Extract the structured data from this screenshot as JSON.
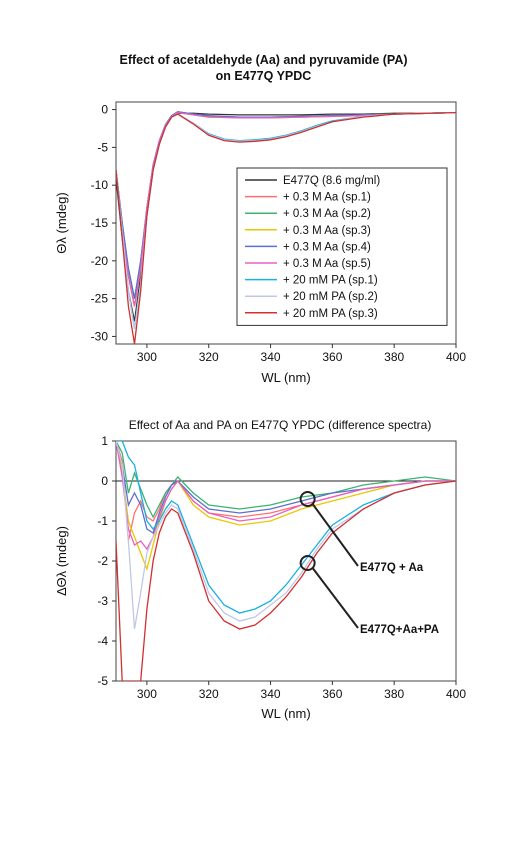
{
  "chart_data": [
    {
      "type": "line",
      "title": "Effect of acetaldehyde (Aa) and pyruvamide (PA)",
      "subtitle": "on E477Q YPDC",
      "xlabel": "WL (nm)",
      "ylabel": "Θλ (mdeg)",
      "xlim": [
        290,
        400
      ],
      "ylim": [
        -31,
        1
      ],
      "xticks": [
        300,
        320,
        340,
        360,
        380,
        400
      ],
      "yticks": [
        0,
        -5,
        -10,
        -15,
        -20,
        -25,
        -30
      ],
      "legend_position": "center-right",
      "series": [
        {
          "name": "E477Q (8.6 mg/ml)",
          "color": "#333333",
          "x": [
            290,
            292,
            294,
            296,
            298,
            300,
            302,
            304,
            306,
            308,
            310,
            315,
            320,
            330,
            340,
            350,
            360,
            370,
            380,
            390,
            400
          ],
          "y": [
            -9,
            -17,
            -24,
            -28,
            -22,
            -14,
            -8,
            -4.5,
            -2.2,
            -0.9,
            -0.5,
            -0.5,
            -0.6,
            -0.7,
            -0.7,
            -0.7,
            -0.6,
            -0.6,
            -0.5,
            -0.5,
            -0.4
          ]
        },
        {
          "name": "+ 0.3 M Aa (sp.1)",
          "color": "#ff6f6f",
          "x": [
            290,
            292,
            294,
            296,
            298,
            300,
            302,
            304,
            306,
            308,
            310,
            315,
            320,
            330,
            340,
            350,
            360,
            370,
            380,
            390,
            400
          ],
          "y": [
            -8,
            -15,
            -22,
            -26,
            -21,
            -13,
            -7.5,
            -4.3,
            -2.1,
            -0.9,
            -0.3,
            -0.6,
            -0.9,
            -1.1,
            -1.1,
            -1.0,
            -0.9,
            -0.7,
            -0.6,
            -0.5,
            -0.4
          ]
        },
        {
          "name": "+ 0.3 M Aa (sp.2)",
          "color": "#3cb371",
          "x": [
            290,
            292,
            294,
            296,
            298,
            300,
            302,
            304,
            306,
            308,
            310,
            315,
            320,
            330,
            340,
            350,
            360,
            370,
            380,
            390,
            400
          ],
          "y": [
            -8,
            -15,
            -21,
            -25,
            -20,
            -13,
            -7.4,
            -4.2,
            -2.0,
            -0.8,
            -0.3,
            -0.6,
            -0.9,
            -1.0,
            -1.0,
            -0.9,
            -0.8,
            -0.7,
            -0.6,
            -0.5,
            -0.4
          ]
        },
        {
          "name": "+ 0.3 M Aa (sp.3)",
          "color": "#e8c800",
          "x": [
            290,
            292,
            294,
            296,
            298,
            300,
            302,
            304,
            306,
            308,
            310,
            315,
            320,
            330,
            340,
            350,
            360,
            370,
            380,
            390,
            400
          ],
          "y": [
            -8,
            -16,
            -22,
            -26,
            -21,
            -13,
            -7.6,
            -4.3,
            -2.1,
            -0.9,
            -0.4,
            -0.7,
            -1.0,
            -1.1,
            -1.1,
            -1.0,
            -0.9,
            -0.8,
            -0.6,
            -0.5,
            -0.4
          ]
        },
        {
          "name": "+ 0.3 M Aa (sp.4)",
          "color": "#5a6fd0",
          "x": [
            290,
            292,
            294,
            296,
            298,
            300,
            302,
            304,
            306,
            308,
            310,
            315,
            320,
            330,
            340,
            350,
            360,
            370,
            380,
            390,
            400
          ],
          "y": [
            -8,
            -15,
            -21,
            -25,
            -20,
            -13,
            -7.3,
            -4.1,
            -2.0,
            -0.8,
            -0.3,
            -0.6,
            -0.8,
            -1.0,
            -1.0,
            -0.9,
            -0.8,
            -0.7,
            -0.6,
            -0.5,
            -0.4
          ]
        },
        {
          "name": "+ 0.3 M Aa (sp.5)",
          "color": "#e860c0",
          "x": [
            290,
            292,
            294,
            296,
            298,
            300,
            302,
            304,
            306,
            308,
            310,
            315,
            320,
            330,
            340,
            350,
            360,
            370,
            380,
            390,
            400
          ],
          "y": [
            -8,
            -16,
            -22,
            -26,
            -21,
            -13,
            -7.5,
            -4.2,
            -2.1,
            -0.9,
            -0.4,
            -0.7,
            -1.0,
            -1.1,
            -1.1,
            -1.0,
            -0.9,
            -0.8,
            -0.6,
            -0.5,
            -0.4
          ]
        },
        {
          "name": "+ 20 mM PA (sp.1)",
          "color": "#1ab0e0",
          "x": [
            290,
            292,
            294,
            296,
            298,
            300,
            302,
            304,
            306,
            308,
            310,
            315,
            320,
            325,
            330,
            335,
            340,
            345,
            350,
            355,
            360,
            370,
            380,
            390,
            400
          ],
          "y": [
            -8,
            -16,
            -24,
            -29,
            -23,
            -14,
            -8,
            -4.6,
            -2.3,
            -1.0,
            -0.6,
            -1.8,
            -3.2,
            -3.9,
            -4.1,
            -4.0,
            -3.8,
            -3.4,
            -2.8,
            -2.1,
            -1.5,
            -0.9,
            -0.6,
            -0.5,
            -0.4
          ]
        },
        {
          "name": "+ 20 mM PA (sp.2)",
          "color": "#c0c8e8",
          "x": [
            290,
            292,
            294,
            296,
            298,
            300,
            302,
            304,
            306,
            308,
            310,
            315,
            320,
            325,
            330,
            335,
            340,
            345,
            350,
            355,
            360,
            370,
            380,
            390,
            400
          ],
          "y": [
            -8,
            -16,
            -24,
            -29,
            -23,
            -14,
            -8,
            -4.6,
            -2.3,
            -1.0,
            -0.6,
            -1.8,
            -3.3,
            -4.0,
            -4.2,
            -4.1,
            -3.9,
            -3.5,
            -2.9,
            -2.2,
            -1.6,
            -0.9,
            -0.6,
            -0.5,
            -0.4
          ]
        },
        {
          "name": "+ 20 mM PA (sp.3)",
          "color": "#d03030",
          "x": [
            290,
            292,
            294,
            296,
            298,
            300,
            302,
            304,
            306,
            308,
            310,
            315,
            320,
            325,
            330,
            335,
            340,
            345,
            350,
            355,
            360,
            370,
            380,
            390,
            400
          ],
          "y": [
            -8,
            -17,
            -26,
            -31,
            -24,
            -14,
            -8,
            -4.6,
            -2.3,
            -1.0,
            -0.6,
            -1.9,
            -3.4,
            -4.1,
            -4.3,
            -4.2,
            -4.0,
            -3.6,
            -3.0,
            -2.3,
            -1.6,
            -1.0,
            -0.6,
            -0.5,
            -0.4
          ]
        }
      ]
    },
    {
      "type": "line",
      "title": "Effect of Aa and PA on E477Q YPDC (difference spectra)",
      "xlabel": "WL (nm)",
      "ylabel": "ΔΘλ (mdeg)",
      "xlim": [
        290,
        400
      ],
      "ylim": [
        -5,
        1
      ],
      "xticks": [
        300,
        320,
        340,
        360,
        380,
        400
      ],
      "yticks": [
        1,
        0,
        -1,
        -2,
        -3,
        -4,
        -5
      ],
      "annotations": [
        {
          "text": "E477Q + Aa",
          "x": 352,
          "y": -0.45
        },
        {
          "text": "E477Q+Aa+PA",
          "x": 352,
          "y": -2.05
        }
      ],
      "series": [
        {
          "color": "#ff6f6f",
          "x": [
            290,
            292,
            294,
            296,
            298,
            300,
            302,
            304,
            306,
            308,
            310,
            315,
            320,
            330,
            340,
            350,
            360,
            370,
            380,
            390,
            400
          ],
          "y": [
            1,
            0.5,
            -1.5,
            -0.8,
            -0.5,
            -0.9,
            -1.0,
            -0.7,
            -0.3,
            -0.1,
            0,
            -0.5,
            -0.8,
            -0.9,
            -0.8,
            -0.6,
            -0.4,
            -0.2,
            -0.1,
            0,
            0
          ]
        },
        {
          "color": "#3cb371",
          "x": [
            290,
            292,
            294,
            296,
            298,
            300,
            302,
            304,
            306,
            308,
            310,
            315,
            320,
            330,
            340,
            350,
            360,
            370,
            380,
            390,
            400
          ],
          "y": [
            1,
            0.7,
            -0.3,
            0.2,
            -0.2,
            -0.6,
            -0.9,
            -0.6,
            -0.3,
            -0.1,
            0.1,
            -0.3,
            -0.6,
            -0.7,
            -0.6,
            -0.4,
            -0.3,
            -0.1,
            0,
            0.1,
            0
          ]
        },
        {
          "color": "#e8c800",
          "x": [
            290,
            292,
            294,
            296,
            298,
            300,
            302,
            304,
            306,
            308,
            310,
            315,
            320,
            330,
            340,
            350,
            360,
            370,
            380,
            390,
            400
          ],
          "y": [
            1,
            0.2,
            -1.0,
            -1.4,
            -1.8,
            -2.2,
            -1.6,
            -1.0,
            -0.5,
            -0.2,
            0,
            -0.6,
            -0.9,
            -1.1,
            -1.0,
            -0.7,
            -0.5,
            -0.3,
            -0.1,
            0,
            0
          ]
        },
        {
          "color": "#5a6fd0",
          "x": [
            290,
            292,
            294,
            296,
            298,
            300,
            302,
            304,
            306,
            308,
            310,
            315,
            320,
            330,
            340,
            350,
            360,
            370,
            380,
            390,
            400
          ],
          "y": [
            1,
            0.4,
            -0.6,
            -0.3,
            -0.6,
            -1.2,
            -1.3,
            -0.8,
            -0.4,
            -0.1,
            0,
            -0.4,
            -0.7,
            -0.8,
            -0.7,
            -0.5,
            -0.3,
            -0.2,
            -0.1,
            0,
            0
          ]
        },
        {
          "color": "#e860c0",
          "x": [
            290,
            292,
            294,
            296,
            298,
            300,
            302,
            304,
            306,
            308,
            310,
            315,
            320,
            330,
            340,
            350,
            360,
            370,
            380,
            390,
            400
          ],
          "y": [
            1,
            0.1,
            -1.2,
            -1.6,
            -1.5,
            -1.7,
            -1.4,
            -0.9,
            -0.5,
            -0.2,
            0,
            -0.5,
            -0.8,
            -1.0,
            -0.9,
            -0.6,
            -0.4,
            -0.2,
            -0.1,
            0,
            0
          ]
        },
        {
          "color": "#1ab0e0",
          "x": [
            290,
            292,
            294,
            296,
            298,
            300,
            302,
            304,
            306,
            308,
            310,
            315,
            320,
            325,
            330,
            335,
            340,
            345,
            350,
            355,
            360,
            370,
            380,
            390,
            400
          ],
          "y": [
            1,
            1,
            0.6,
            0.4,
            -0.3,
            -1.0,
            -1.2,
            -1.0,
            -0.7,
            -0.5,
            -0.6,
            -1.6,
            -2.6,
            -3.1,
            -3.3,
            -3.2,
            -3.0,
            -2.6,
            -2.1,
            -1.6,
            -1.1,
            -0.6,
            -0.3,
            -0.1,
            0
          ]
        },
        {
          "color": "#c0c8e8",
          "x": [
            290,
            292,
            294,
            296,
            298,
            300,
            302,
            304,
            306,
            308,
            310,
            315,
            320,
            325,
            330,
            335,
            340,
            345,
            350,
            355,
            360,
            370,
            380,
            390,
            400
          ],
          "y": [
            1,
            0.4,
            -1.5,
            -3.7,
            -2.8,
            -1.8,
            -1.4,
            -1.1,
            -0.8,
            -0.6,
            -0.7,
            -1.7,
            -2.8,
            -3.3,
            -3.5,
            -3.4,
            -3.1,
            -2.8,
            -2.3,
            -1.7,
            -1.2,
            -0.7,
            -0.3,
            -0.1,
            0
          ]
        },
        {
          "color": "#d03030",
          "x": [
            290,
            292,
            294,
            296,
            298,
            300,
            302,
            304,
            306,
            308,
            310,
            315,
            320,
            325,
            330,
            335,
            340,
            345,
            350,
            355,
            360,
            370,
            380,
            390,
            400
          ],
          "y": [
            -1.5,
            -5,
            -5,
            -5,
            -5,
            -3.2,
            -2.0,
            -1.3,
            -0.9,
            -0.7,
            -0.8,
            -1.8,
            -3.0,
            -3.5,
            -3.7,
            -3.6,
            -3.3,
            -2.9,
            -2.4,
            -1.8,
            -1.3,
            -0.7,
            -0.3,
            -0.1,
            0
          ]
        }
      ]
    }
  ]
}
